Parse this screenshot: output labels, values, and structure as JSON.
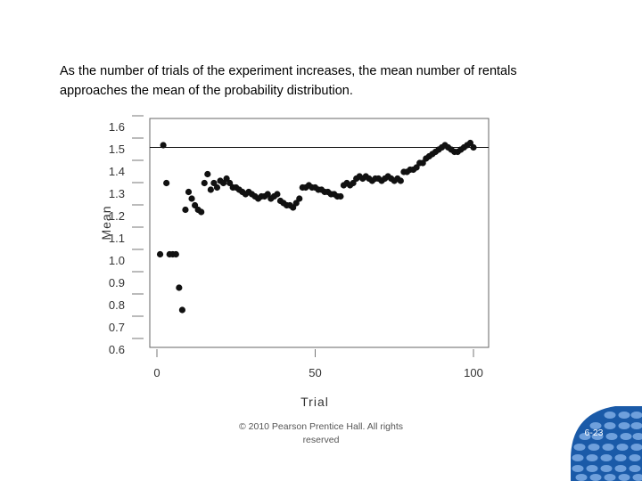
{
  "caption": {
    "line1": "As the number of trials of the experiment increases, the mean number of rentals",
    "line2": "approaches the mean of the probability distribution."
  },
  "footer": {
    "line1": "© 2010 Pearson Prentice Hall. All rights",
    "line2": "reserved"
  },
  "page_number": "6-23",
  "colors": {
    "logo_blue": "#1a5aa8",
    "logo_light": "#6fa0dc",
    "point": "#111111"
  },
  "chart_data": {
    "type": "scatter",
    "title": "",
    "xlabel": "Trial",
    "ylabel": "Mean",
    "xlim": [
      0,
      100
    ],
    "ylim": [
      0.6,
      1.6
    ],
    "x_ticks": [
      "0",
      "50",
      "100"
    ],
    "x_tick_values": [
      0,
      50,
      100
    ],
    "y_ticks": [
      "1.6",
      "1.5",
      "1.4",
      "1.3",
      "1.2",
      "1.1",
      "1.0",
      "0.9",
      "0.8",
      "0.7",
      "0.6"
    ],
    "y_tick_values": [
      1.6,
      1.5,
      1.4,
      1.3,
      1.2,
      1.1,
      1.0,
      0.9,
      0.8,
      0.7,
      0.6
    ],
    "reference_line": 1.51,
    "series": [
      {
        "name": "Mean",
        "x": [
          1,
          2,
          3,
          4,
          5,
          6,
          7,
          8,
          9,
          10,
          11,
          12,
          13,
          14,
          15,
          16,
          17,
          18,
          19,
          20,
          21,
          22,
          23,
          24,
          25,
          26,
          27,
          28,
          29,
          30,
          31,
          32,
          33,
          34,
          35,
          36,
          37,
          38,
          39,
          40,
          41,
          42,
          43,
          44,
          45,
          46,
          47,
          48,
          49,
          50,
          51,
          52,
          53,
          54,
          55,
          56,
          57,
          58,
          59,
          60,
          61,
          62,
          63,
          64,
          65,
          66,
          67,
          68,
          69,
          70,
          71,
          72,
          73,
          74,
          75,
          76,
          77,
          78,
          79,
          80,
          81,
          82,
          83,
          84,
          85,
          86,
          87,
          88,
          89,
          90,
          91,
          92,
          93,
          94,
          95,
          96,
          97,
          98,
          99,
          100
        ],
        "y": [
          1.03,
          1.52,
          1.35,
          1.03,
          1.03,
          1.03,
          0.88,
          0.78,
          1.23,
          1.31,
          1.28,
          1.25,
          1.23,
          1.22,
          1.35,
          1.39,
          1.32,
          1.35,
          1.33,
          1.36,
          1.35,
          1.37,
          1.35,
          1.33,
          1.33,
          1.32,
          1.31,
          1.3,
          1.31,
          1.3,
          1.29,
          1.28,
          1.29,
          1.29,
          1.3,
          1.28,
          1.29,
          1.3,
          1.27,
          1.26,
          1.25,
          1.25,
          1.24,
          1.26,
          1.28,
          1.33,
          1.33,
          1.34,
          1.33,
          1.33,
          1.32,
          1.32,
          1.31,
          1.31,
          1.3,
          1.3,
          1.29,
          1.29,
          1.34,
          1.35,
          1.34,
          1.35,
          1.37,
          1.38,
          1.37,
          1.38,
          1.37,
          1.36,
          1.37,
          1.37,
          1.36,
          1.37,
          1.38,
          1.37,
          1.36,
          1.37,
          1.36,
          1.4,
          1.4,
          1.41,
          1.41,
          1.42,
          1.44,
          1.44,
          1.46,
          1.47,
          1.48,
          1.49,
          1.5,
          1.51,
          1.52,
          1.51,
          1.5,
          1.49,
          1.49,
          1.5,
          1.51,
          1.52,
          1.53,
          1.51
        ]
      }
    ]
  }
}
